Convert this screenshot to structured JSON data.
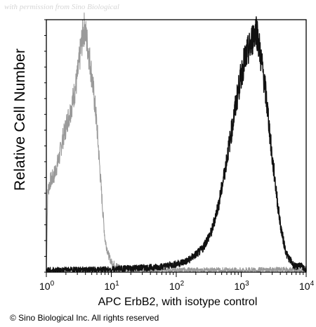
{
  "watermark": "with permission from Sino Biological",
  "copyright": "© Sino Biological Inc. All rights reserved",
  "chart_data": {
    "type": "line",
    "title": "",
    "xlabel": "APC ErbB2, with isotype control",
    "ylabel": "Relative Cell Number",
    "xscale": "log",
    "xlim": [
      1,
      10000
    ],
    "ylim": [
      0,
      100
    ],
    "grid": false,
    "legend": "none",
    "x_ticks": [
      {
        "base": "10",
        "exp": "0"
      },
      {
        "base": "10",
        "exp": "1"
      },
      {
        "base": "10",
        "exp": "2"
      },
      {
        "base": "10",
        "exp": "3"
      },
      {
        "base": "10",
        "exp": "4"
      }
    ],
    "series": [
      {
        "role": "isotype control",
        "color": "#9a9a9a",
        "points": [
          [
            1.0,
            0.5
          ],
          [
            1.05,
            32
          ],
          [
            1.15,
            36
          ],
          [
            1.3,
            38
          ],
          [
            1.45,
            42
          ],
          [
            1.6,
            46
          ],
          [
            1.75,
            52
          ],
          [
            1.9,
            55
          ],
          [
            2.1,
            60
          ],
          [
            2.3,
            63
          ],
          [
            2.5,
            67
          ],
          [
            2.7,
            71
          ],
          [
            2.9,
            75
          ],
          [
            3.1,
            80
          ],
          [
            3.3,
            86
          ],
          [
            3.5,
            91
          ],
          [
            3.7,
            95
          ],
          [
            3.9,
            97
          ],
          [
            4.1,
            93
          ],
          [
            4.3,
            90
          ],
          [
            4.6,
            85
          ],
          [
            5.0,
            78
          ],
          [
            5.5,
            68
          ],
          [
            6.0,
            58
          ],
          [
            6.5,
            45
          ],
          [
            7.0,
            33
          ],
          [
            7.5,
            22
          ],
          [
            8.0,
            13
          ],
          [
            9.0,
            7
          ],
          [
            10,
            4
          ],
          [
            12,
            2.5
          ],
          [
            15,
            1.5
          ],
          [
            20,
            1.2
          ],
          [
            40,
            0.8
          ],
          [
            100,
            0.6
          ],
          [
            400,
            0.6
          ],
          [
            1000,
            0.6
          ],
          [
            4000,
            0.8
          ],
          [
            10000,
            0.6
          ]
        ]
      },
      {
        "role": "APC ErbB2",
        "color": "#111111",
        "points": [
          [
            1.0,
            0.6
          ],
          [
            2,
            0.8
          ],
          [
            5,
            0.8
          ],
          [
            10,
            1.0
          ],
          [
            20,
            1.6
          ],
          [
            40,
            1.8
          ],
          [
            60,
            2.2
          ],
          [
            100,
            3.2
          ],
          [
            150,
            4.5
          ],
          [
            200,
            7
          ],
          [
            250,
            9
          ],
          [
            300,
            13
          ],
          [
            350,
            16
          ],
          [
            400,
            22
          ],
          [
            450,
            27
          ],
          [
            500,
            33
          ],
          [
            550,
            39
          ],
          [
            600,
            45
          ],
          [
            700,
            55
          ],
          [
            800,
            64
          ],
          [
            900,
            72
          ],
          [
            1000,
            78
          ],
          [
            1100,
            83
          ],
          [
            1250,
            87
          ],
          [
            1400,
            90
          ],
          [
            1550,
            94
          ],
          [
            1700,
            97
          ],
          [
            1850,
            91
          ],
          [
            2000,
            85
          ],
          [
            2200,
            78
          ],
          [
            2400,
            70
          ],
          [
            2600,
            62
          ],
          [
            2800,
            53
          ],
          [
            3000,
            45
          ],
          [
            3300,
            37
          ],
          [
            3600,
            28
          ],
          [
            4000,
            19
          ],
          [
            4500,
            12
          ],
          [
            5000,
            7
          ],
          [
            5600,
            5
          ],
          [
            6300,
            3
          ],
          [
            7000,
            2
          ],
          [
            8000,
            3
          ],
          [
            9000,
            1.5
          ],
          [
            10000,
            1
          ]
        ]
      }
    ]
  }
}
